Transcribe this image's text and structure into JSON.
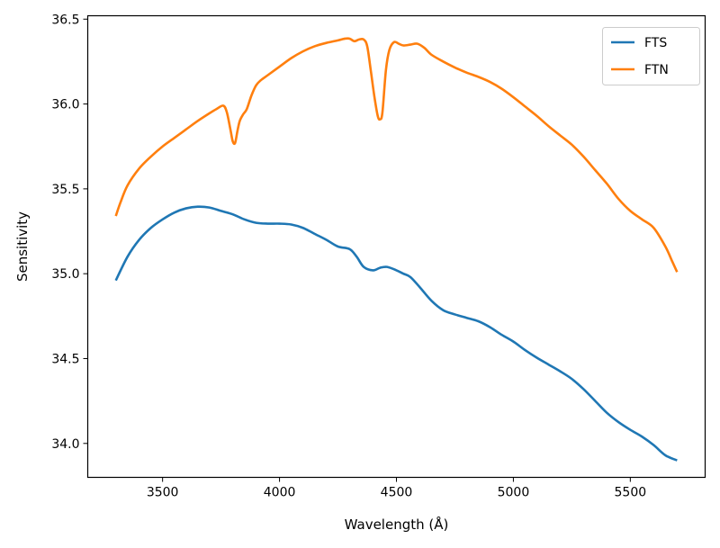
{
  "chart_data": {
    "type": "line",
    "title": "",
    "xlabel": "Wavelength (Å)",
    "ylabel": "Sensitivity",
    "xlim": [
      3180,
      5820
    ],
    "ylim": [
      33.8,
      36.52
    ],
    "xticks": [
      3500,
      4000,
      4500,
      5000,
      5500
    ],
    "yticks": [
      34.0,
      34.5,
      35.0,
      35.5,
      36.0,
      36.5
    ],
    "xtick_labels": [
      "3500",
      "4000",
      "4500",
      "5000",
      "5500"
    ],
    "ytick_labels": [
      "34.0",
      "34.5",
      "35.0",
      "35.5",
      "36.0",
      "36.5"
    ],
    "grid": false,
    "legend_position": "top-right",
    "series": [
      {
        "name": "FTS",
        "color": "#1f77b4",
        "x": [
          3300,
          3350,
          3400,
          3450,
          3500,
          3550,
          3600,
          3650,
          3700,
          3750,
          3800,
          3850,
          3900,
          3950,
          4000,
          4050,
          4100,
          4150,
          4200,
          4250,
          4300,
          4330,
          4360,
          4400,
          4430,
          4460,
          4500,
          4530,
          4560,
          4600,
          4650,
          4700,
          4750,
          4800,
          4850,
          4900,
          4950,
          5000,
          5050,
          5100,
          5150,
          5200,
          5250,
          5300,
          5350,
          5400,
          5450,
          5500,
          5550,
          5600,
          5650,
          5700
        ],
        "y": [
          34.96,
          35.1,
          35.2,
          35.27,
          35.32,
          35.36,
          35.385,
          35.395,
          35.39,
          35.37,
          35.35,
          35.32,
          35.3,
          35.295,
          35.295,
          35.29,
          35.27,
          35.235,
          35.2,
          35.16,
          35.145,
          35.1,
          35.04,
          35.02,
          35.035,
          35.04,
          35.02,
          35.0,
          34.98,
          34.92,
          34.84,
          34.785,
          34.76,
          34.74,
          34.72,
          34.685,
          34.64,
          34.6,
          34.55,
          34.505,
          34.465,
          34.425,
          34.38,
          34.32,
          34.25,
          34.18,
          34.125,
          34.08,
          34.04,
          33.99,
          33.93,
          33.9
        ]
      },
      {
        "name": "FTN",
        "color": "#ff7f0e",
        "x": [
          3300,
          3320,
          3350,
          3400,
          3450,
          3500,
          3550,
          3600,
          3650,
          3700,
          3730,
          3760,
          3775,
          3790,
          3800,
          3810,
          3820,
          3830,
          3845,
          3860,
          3880,
          3900,
          3920,
          3950,
          4000,
          4050,
          4100,
          4150,
          4200,
          4250,
          4280,
          4300,
          4320,
          4340,
          4360,
          4375,
          4390,
          4405,
          4420,
          4430,
          4440,
          4455,
          4470,
          4490,
          4510,
          4530,
          4560,
          4590,
          4620,
          4650,
          4700,
          4750,
          4800,
          4850,
          4900,
          4950,
          5000,
          5050,
          5100,
          5150,
          5200,
          5250,
          5300,
          5350,
          5400,
          5450,
          5500,
          5550,
          5600,
          5650,
          5680,
          5700
        ],
        "y": [
          35.34,
          35.42,
          35.52,
          35.62,
          35.69,
          35.75,
          35.8,
          35.85,
          35.9,
          35.945,
          35.97,
          35.99,
          35.95,
          35.85,
          35.78,
          35.77,
          35.84,
          35.9,
          35.94,
          35.97,
          36.05,
          36.11,
          36.14,
          36.17,
          36.22,
          36.27,
          36.31,
          36.34,
          36.36,
          36.375,
          36.385,
          36.385,
          36.37,
          36.38,
          36.38,
          36.34,
          36.2,
          36.05,
          35.93,
          35.91,
          35.95,
          36.2,
          36.32,
          36.365,
          36.355,
          36.345,
          36.35,
          36.355,
          36.33,
          36.29,
          36.25,
          36.215,
          36.185,
          36.16,
          36.13,
          36.09,
          36.04,
          35.985,
          35.93,
          35.87,
          35.815,
          35.76,
          35.69,
          35.61,
          35.53,
          35.44,
          35.37,
          35.32,
          35.27,
          35.16,
          35.07,
          35.01
        ]
      }
    ]
  }
}
